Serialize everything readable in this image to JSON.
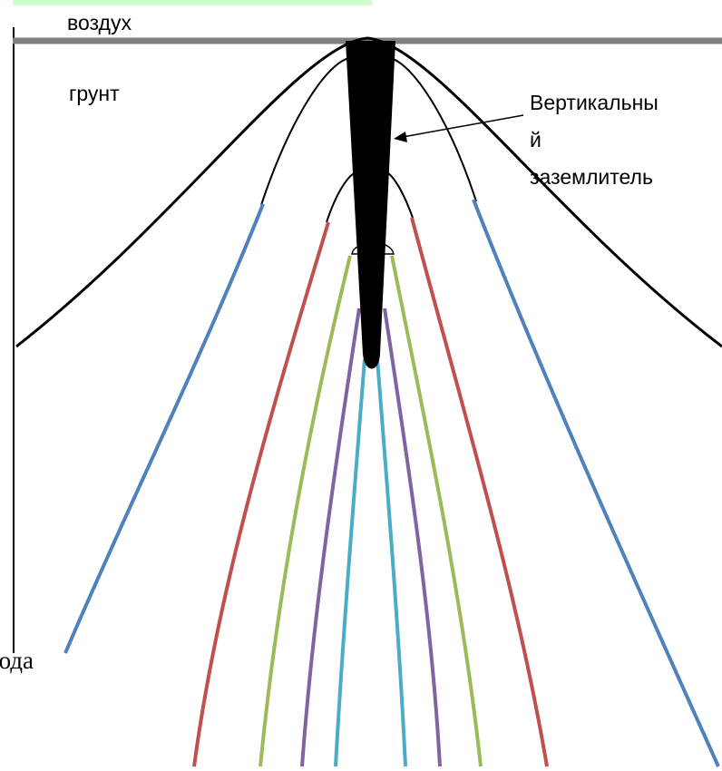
{
  "labels": {
    "air": "воздух",
    "soil": "грунт",
    "electrode_line1": "Вертикальны",
    "electrode_line2": "й",
    "electrode_line3": "заземлитель",
    "partial_text": "вода"
  },
  "colors": {
    "ground_surface": "#808080",
    "electrode": "#000000",
    "outline": "#000000",
    "line_blue": "#4f81bd",
    "line_red": "#c0504d",
    "line_green": "#9bbb59",
    "line_purple": "#8064a2",
    "line_cyan": "#4bacc6",
    "top_strip": "#ccffcc"
  }
}
